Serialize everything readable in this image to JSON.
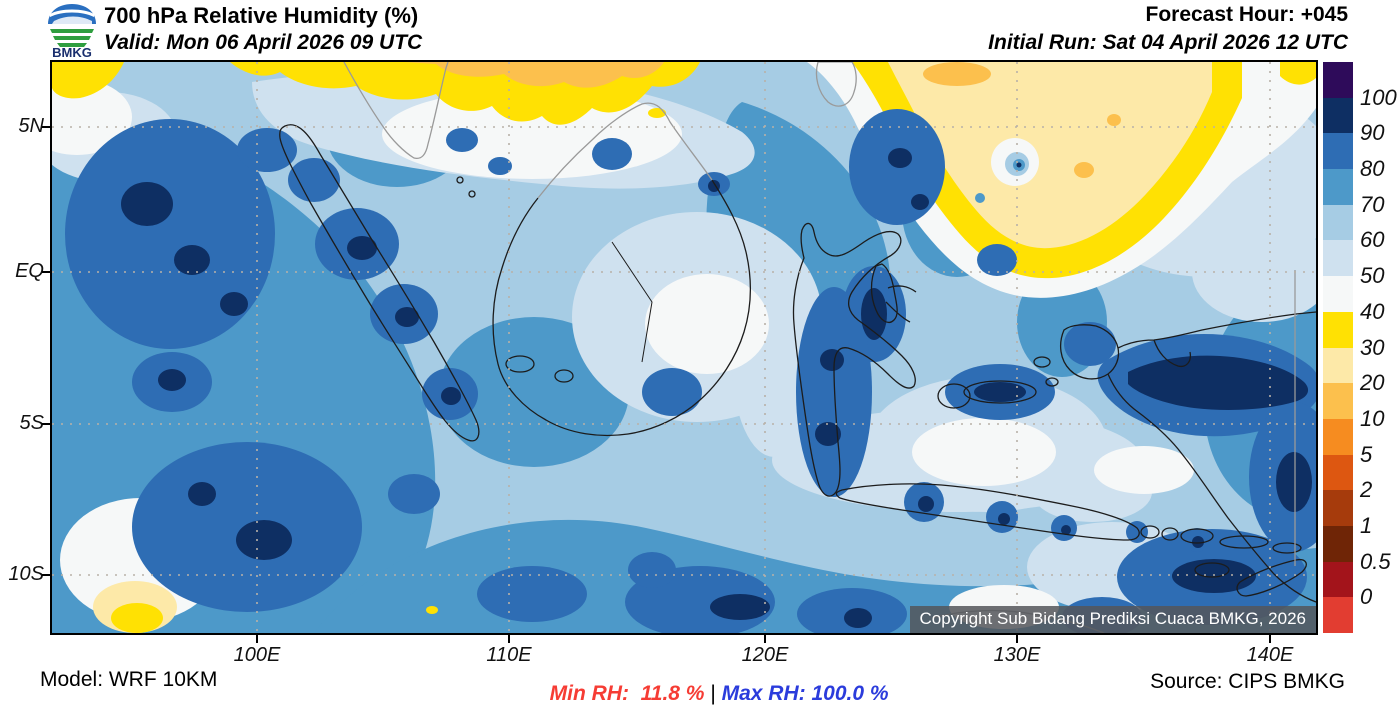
{
  "header": {
    "logo_text": "BMKG",
    "title": "700 hPa Relative Humidity (%)",
    "valid_line": "Valid: Mon 06 April 2026 09 UTC",
    "forecast_hour": "Forecast Hour: +045",
    "initial_run": "Initial Run: Sat 04 April 2026 12 UTC"
  },
  "map": {
    "copyright": "Copyright Sub Bidang Prediksi Cuaca BMKG, 2026",
    "lat_ticks": [
      "5N",
      "EQ",
      "5S",
      "10S"
    ],
    "lon_ticks": [
      "100E",
      "110E",
      "120E",
      "130E",
      "140E"
    ]
  },
  "colorbar": {
    "labels": [
      "100",
      "90",
      "80",
      "70",
      "60",
      "50",
      "40",
      "30",
      "20",
      "10",
      "5",
      "2",
      "1",
      "0.5",
      "0"
    ],
    "colors_top_to_bottom": [
      "#2e0b5a",
      "#0e2f63",
      "#2e6db4",
      "#4d99c9",
      "#a6cce4",
      "#cfe1ef",
      "#f6f8f8",
      "#ffe103",
      "#fde9a8",
      "#fcc04d",
      "#f68c20",
      "#dd5711",
      "#a63b0c",
      "#6f2506",
      "#a3141b",
      "#e23d31"
    ]
  },
  "footer": {
    "model": "Model: WRF 10KM",
    "min_rh": "Min RH:  11.8 %",
    "separator": " | ",
    "max_rh": "Max RH: 100.0 %",
    "source": "Source: CIPS BMKG",
    "min_color": "#f63c34",
    "max_color": "#2b3cdc"
  },
  "chart_data": {
    "type": "heatmap",
    "title": "700 hPa Relative Humidity (%)",
    "units": "%",
    "contour_levels": [
      0,
      0.5,
      1,
      2,
      5,
      10,
      20,
      30,
      40,
      50,
      60,
      70,
      80,
      90,
      100
    ],
    "level_colors_low_to_high": [
      "#e23d31",
      "#a3141b",
      "#6f2506",
      "#a63b0c",
      "#dd5711",
      "#f68c20",
      "#fcc04d",
      "#fde9a8",
      "#ffe103",
      "#f6f8f8",
      "#cfe1ef",
      "#a6cce4",
      "#4d99c9",
      "#2e6db4",
      "#0e2f63",
      "#2e0b5a"
    ],
    "x_tick_labels": [
      "100E",
      "110E",
      "120E",
      "130E",
      "140E"
    ],
    "y_tick_labels": [
      "5N",
      "EQ",
      "5S",
      "10S"
    ],
    "min_rh_percent": 11.8,
    "max_rh_percent": 100.0,
    "legend_position": "right"
  }
}
